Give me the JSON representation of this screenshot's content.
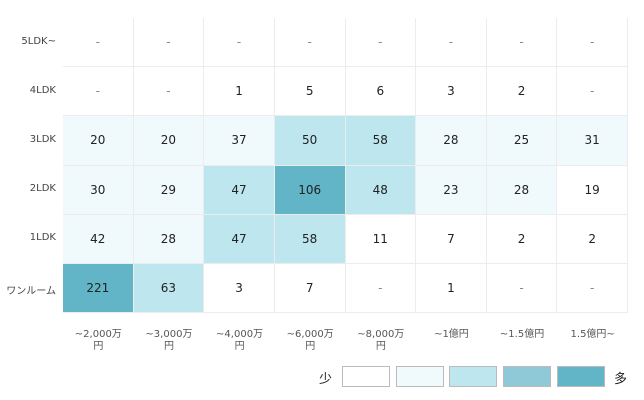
{
  "chart_data": {
    "type": "heatmap",
    "x_categories": [
      "~2,000万円",
      "~3,000万円",
      "~4,000万円",
      "~6,000万円",
      "~8,000万円",
      "~1億円",
      "~1.5億円",
      "1.5億円~"
    ],
    "y_categories": [
      "5LDK~",
      "4LDK",
      "3LDK",
      "2LDK",
      "1LDK",
      "ワンルーム"
    ],
    "values": [
      [
        null,
        null,
        null,
        null,
        null,
        null,
        null,
        null
      ],
      [
        null,
        null,
        1,
        5,
        6,
        3,
        2,
        null
      ],
      [
        20,
        20,
        37,
        50,
        58,
        28,
        25,
        31
      ],
      [
        30,
        29,
        47,
        106,
        48,
        23,
        28,
        19
      ],
      [
        42,
        28,
        47,
        58,
        11,
        7,
        2,
        2
      ],
      [
        221,
        63,
        3,
        7,
        null,
        1,
        null,
        null
      ]
    ],
    "missing_label": "-",
    "cell_colors": [
      [
        "#ffffff",
        "#ffffff",
        "#ffffff",
        "#ffffff",
        "#ffffff",
        "#ffffff",
        "#ffffff",
        "#ffffff"
      ],
      [
        "#ffffff",
        "#ffffff",
        "#ffffff",
        "#ffffff",
        "#ffffff",
        "#ffffff",
        "#ffffff",
        "#ffffff"
      ],
      [
        "#f0f9fc",
        "#f0f9fc",
        "#f0f9fc",
        "#bde6ef",
        "#bde6ef",
        "#f0f9fc",
        "#f0f9fc",
        "#f0f9fc"
      ],
      [
        "#f0f9fc",
        "#f0f9fc",
        "#bde6ef",
        "#62b4c7",
        "#bde6ef",
        "#f0f9fc",
        "#f0f9fc",
        "#ffffff"
      ],
      [
        "#f0f9fc",
        "#f0f9fc",
        "#bde6ef",
        "#bde6ef",
        "#ffffff",
        "#ffffff",
        "#ffffff",
        "#ffffff"
      ],
      [
        "#62b4c7",
        "#bde6ef",
        "#ffffff",
        "#ffffff",
        "#ffffff",
        "#ffffff",
        "#ffffff",
        "#ffffff"
      ]
    ],
    "legend": {
      "low_label": "少",
      "high_label": "多",
      "colors": [
        "#ffffff",
        "#f0f9fc",
        "#bde6ef",
        "#8fc8d6",
        "#62b4c7"
      ]
    }
  }
}
